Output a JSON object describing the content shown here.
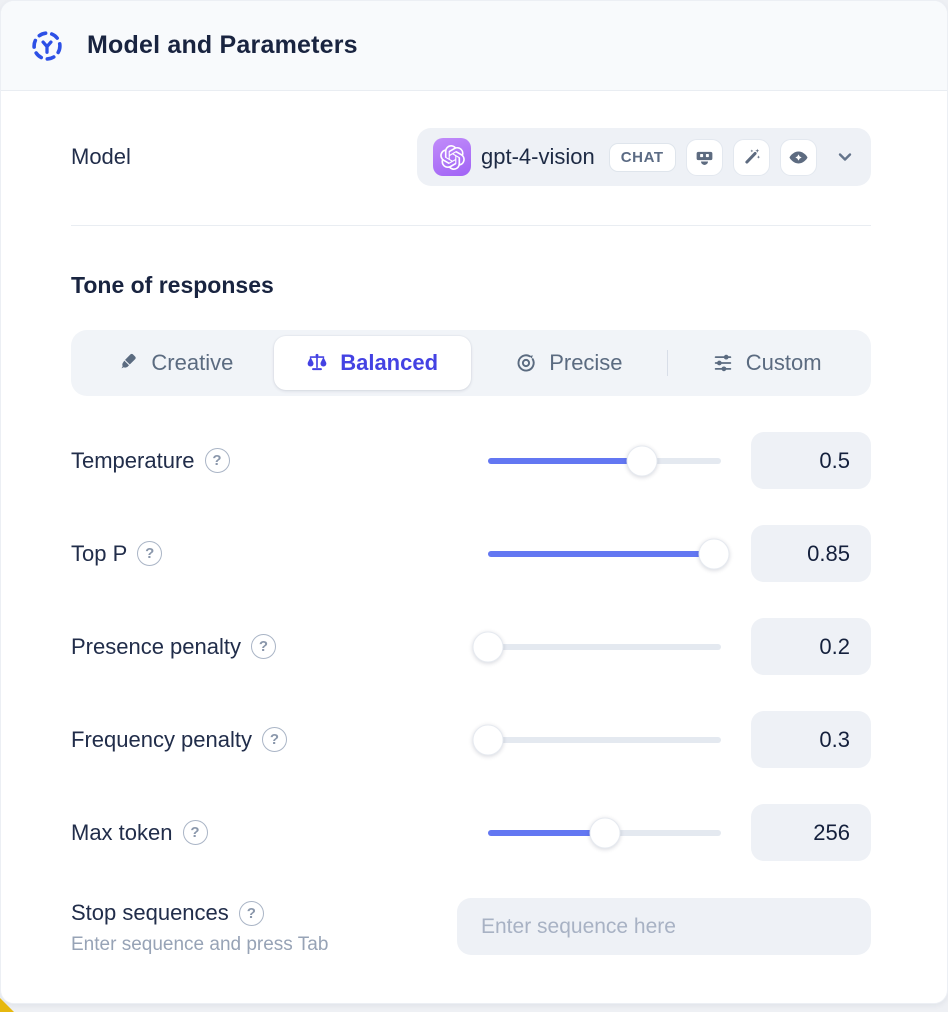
{
  "header": {
    "title": "Model and Parameters"
  },
  "model": {
    "label": "Model",
    "selected_name": "gpt-4-vision",
    "type_badge": "CHAT",
    "capability_icons": [
      "robot-icon",
      "magic-wand-icon",
      "vision-eye-icon"
    ],
    "logo": "openai-logo",
    "logo_color": "#a163f5"
  },
  "tone": {
    "heading": "Tone of responses",
    "options": [
      {
        "label": "Creative",
        "icon": "paintbrush-icon",
        "selected": false
      },
      {
        "label": "Balanced",
        "icon": "balance-scale-icon",
        "selected": true
      },
      {
        "label": "Precise",
        "icon": "target-icon",
        "selected": false
      },
      {
        "label": "Custom",
        "icon": "sliders-icon",
        "selected": false
      }
    ],
    "selected_text_color": "#4442e3"
  },
  "parameters": [
    {
      "label": "Temperature",
      "value": "0.5",
      "slider_percent": 66
    },
    {
      "label": "Top P",
      "value": "0.85",
      "slider_percent": 97
    },
    {
      "label": "Presence penalty",
      "value": "0.2",
      "slider_percent": 0
    },
    {
      "label": "Frequency penalty",
      "value": "0.3",
      "slider_percent": 0
    },
    {
      "label": "Max token",
      "value": "256",
      "slider_percent": 50
    }
  ],
  "stop_sequences": {
    "label": "Stop sequences",
    "hint": "Enter sequence and press Tab",
    "placeholder": "Enter sequence here"
  },
  "glyphs": {
    "question": "?"
  },
  "colors": {
    "slider_fill": "#6377f2",
    "header_icon_blue": "#2d50e6",
    "control_bg": "#eef1f6",
    "text_dark": "#192440",
    "text_gray": "#5b6b80"
  }
}
